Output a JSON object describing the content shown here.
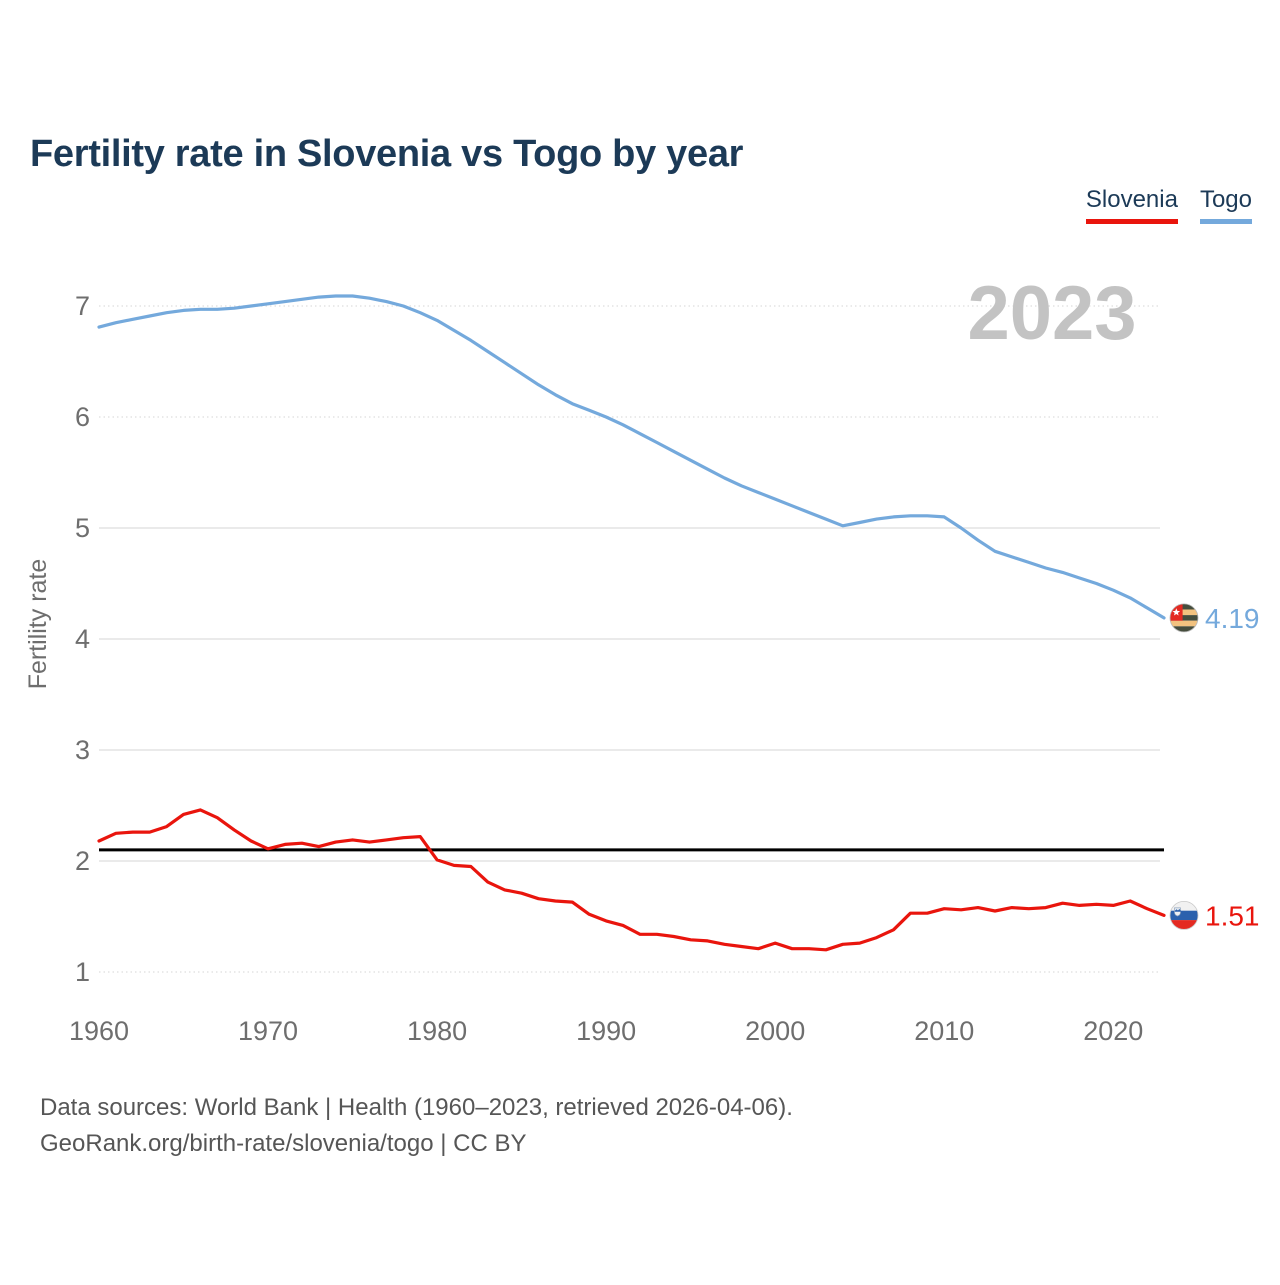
{
  "header": {
    "title": "Fertility rate in Slovenia vs Togo by year"
  },
  "page": {
    "watermark": "2023"
  },
  "legend": {
    "items": [
      {
        "label": "Slovenia",
        "color": "#e9150d"
      },
      {
        "label": "Togo",
        "color": "#74a9dc"
      }
    ]
  },
  "end_labels": {
    "togo": "4.19",
    "slovenia": "1.51"
  },
  "footer": {
    "line1": "Data sources: World Bank | Health (1960–2023, retrieved 2026-04-06).",
    "line2": "GeoRank.org/birth-rate/slovenia/togo | CC BY"
  },
  "chart_data": {
    "type": "line",
    "title": "Fertility rate in Slovenia vs Togo by year",
    "xlabel": "",
    "ylabel": "Fertility rate",
    "x_range": [
      1960,
      2023
    ],
    "x": [
      1960,
      1961,
      1962,
      1963,
      1964,
      1965,
      1966,
      1967,
      1968,
      1969,
      1970,
      1971,
      1972,
      1973,
      1974,
      1975,
      1976,
      1977,
      1978,
      1979,
      1980,
      1981,
      1982,
      1983,
      1984,
      1985,
      1986,
      1987,
      1988,
      1989,
      1990,
      1991,
      1992,
      1993,
      1994,
      1995,
      1996,
      1997,
      1998,
      1999,
      2000,
      2001,
      2002,
      2003,
      2004,
      2005,
      2006,
      2007,
      2008,
      2009,
      2010,
      2011,
      2012,
      2013,
      2014,
      2015,
      2016,
      2017,
      2018,
      2019,
      2020,
      2021,
      2022,
      2023
    ],
    "series": [
      {
        "name": "Togo",
        "color": "#74a9dc",
        "end_value": 4.19,
        "values": [
          6.81,
          6.85,
          6.88,
          6.91,
          6.94,
          6.96,
          6.97,
          6.97,
          6.98,
          7.0,
          7.02,
          7.04,
          7.06,
          7.08,
          7.09,
          7.09,
          7.07,
          7.04,
          7.0,
          6.94,
          6.87,
          6.78,
          6.69,
          6.59,
          6.49,
          6.39,
          6.29,
          6.2,
          6.12,
          6.06,
          6.0,
          5.93,
          5.85,
          5.77,
          5.69,
          5.61,
          5.53,
          5.45,
          5.38,
          5.32,
          5.26,
          5.2,
          5.14,
          5.08,
          5.02,
          5.05,
          5.08,
          5.1,
          5.11,
          5.11,
          5.1,
          5.0,
          4.89,
          4.79,
          4.74,
          4.69,
          4.64,
          4.6,
          4.55,
          4.5,
          4.44,
          4.37,
          4.28,
          4.19
        ]
      },
      {
        "name": "Slovenia",
        "color": "#e9150d",
        "end_value": 1.51,
        "values": [
          2.18,
          2.25,
          2.26,
          2.26,
          2.31,
          2.42,
          2.46,
          2.39,
          2.28,
          2.18,
          2.11,
          2.15,
          2.16,
          2.13,
          2.17,
          2.19,
          2.17,
          2.19,
          2.21,
          2.22,
          2.01,
          1.96,
          1.95,
          1.81,
          1.74,
          1.71,
          1.66,
          1.64,
          1.63,
          1.52,
          1.46,
          1.42,
          1.34,
          1.34,
          1.32,
          1.29,
          1.28,
          1.25,
          1.23,
          1.21,
          1.26,
          1.21,
          1.21,
          1.2,
          1.25,
          1.26,
          1.31,
          1.38,
          1.53,
          1.53,
          1.57,
          1.56,
          1.58,
          1.55,
          1.58,
          1.57,
          1.58,
          1.62,
          1.6,
          1.61,
          1.6,
          1.64,
          1.57,
          1.51
        ]
      }
    ],
    "reference_line": {
      "value": 2.1,
      "color": "#000000"
    },
    "yticks": [
      1,
      2,
      3,
      4,
      5,
      6,
      7
    ],
    "xticks": [
      1960,
      1970,
      1980,
      1990,
      2000,
      2010,
      2020
    ],
    "ylim": [
      0.75,
      7.6
    ],
    "grid": true,
    "dotted_yticks": [
      1,
      6,
      7
    ],
    "legend_position": "top-right"
  }
}
